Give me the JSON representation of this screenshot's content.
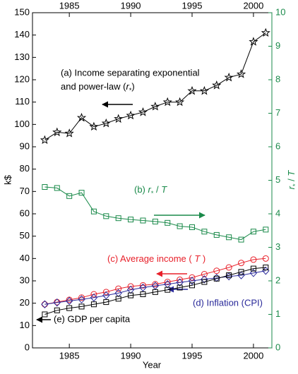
{
  "chart_data": {
    "type": "line",
    "x": [
      1983,
      1984,
      1985,
      1986,
      1987,
      1988,
      1989,
      1990,
      1991,
      1992,
      1993,
      1994,
      1995,
      1996,
      1997,
      1998,
      1999,
      2000,
      2001
    ],
    "xlim": [
      1982,
      2001.5
    ],
    "xticks": [
      1985,
      1990,
      1995,
      2000
    ],
    "ylim": [
      0,
      150
    ],
    "yticks": [
      0,
      10,
      20,
      30,
      40,
      50,
      60,
      70,
      80,
      90,
      100,
      110,
      120,
      130,
      140,
      150
    ],
    "y2lim": [
      0,
      10
    ],
    "y2ticks": [
      0,
      1,
      2,
      3,
      4,
      5,
      6,
      7,
      8,
      9,
      10
    ],
    "y2color": "#1a8a4a",
    "xlabel": "Year",
    "ylabel": "k$",
    "y2label": [
      "r",
      "*",
      " / ",
      "T"
    ],
    "series": [
      {
        "marker": "star",
        "color": "#000000",
        "values": [
          93,
          96.5,
          96,
          103,
          99,
          100.5,
          102.5,
          104,
          105.5,
          108,
          110,
          110,
          115,
          115,
          117.5,
          121,
          122.5,
          137,
          141
        ]
      },
      {
        "marker": "square",
        "color": "#1a8a4a",
        "axis": "y2",
        "values": [
          4.8,
          4.77,
          4.53,
          4.63,
          4.07,
          3.93,
          3.87,
          3.83,
          3.8,
          3.77,
          3.73,
          3.63,
          3.6,
          3.47,
          3.37,
          3.3,
          3.23,
          3.47,
          3.53
        ]
      },
      {
        "marker": "circle",
        "color": "#e8202a",
        "values": [
          19.5,
          20.5,
          21.5,
          22.5,
          24,
          25,
          26.5,
          27.5,
          28,
          28.5,
          29.5,
          30.5,
          31.5,
          33,
          34.5,
          36,
          38,
          39.5,
          40
        ]
      },
      {
        "marker": "diamond",
        "color": "#2a2a9a",
        "values": [
          19.5,
          20.3,
          21,
          21.7,
          22.5,
          23.5,
          24.5,
          26,
          27,
          27.8,
          28.5,
          29.3,
          30,
          30.7,
          31.3,
          32,
          32.5,
          33.5,
          34.5
        ]
      },
      {
        "marker": "square",
        "color": "#000000",
        "values": [
          15,
          16.8,
          17.8,
          18.5,
          19.5,
          20.5,
          22,
          23.5,
          24,
          25,
          26,
          27,
          28,
          29.5,
          31,
          32.5,
          34,
          35.5,
          36
        ]
      }
    ],
    "annotations": {
      "a": [
        [
          "(a) Income separating exponential"
        ],
        [
          "and power-law  (",
          "r",
          "*",
          ")"
        ]
      ],
      "b": [
        "(b)  ",
        "r",
        "*",
        " / ",
        "T"
      ],
      "c": [
        "(c) Average income ( ",
        "T",
        " )"
      ],
      "d": "(d) Inflation (CPI)",
      "e": "(e) GDP per capita"
    }
  }
}
